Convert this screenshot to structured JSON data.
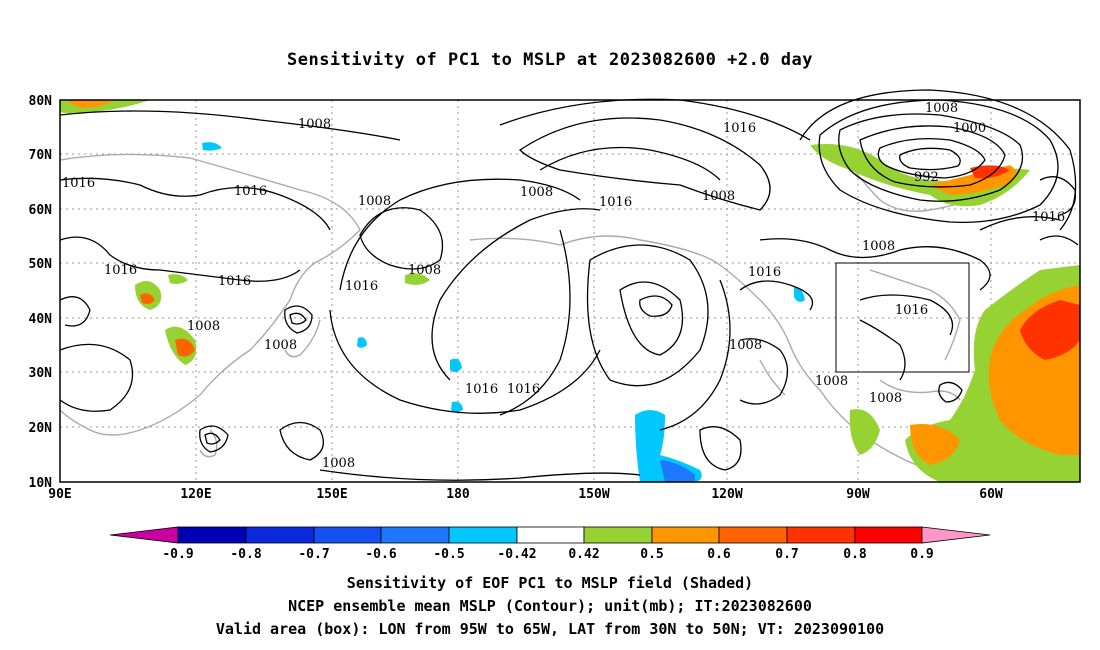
{
  "title": "Sensitivity of PC1 to MSLP at 2023082600 +2.0 day",
  "axes": {
    "lat_labels": [
      "80N",
      "70N",
      "60N",
      "50N",
      "40N",
      "30N",
      "20N",
      "10N"
    ],
    "lon_labels": [
      "90E",
      "120E",
      "150E",
      "180",
      "150W",
      "120W",
      "90W",
      "60W"
    ]
  },
  "contour_labels": [
    "1008",
    "1008",
    "1008",
    "1008",
    "1000",
    "992",
    "1016",
    "1016",
    "1016",
    "1016",
    "1016",
    "1016",
    "1008",
    "1016",
    "1008",
    "1016",
    "1016",
    "1008",
    "1016",
    "1016",
    "1016",
    "1008",
    "1008",
    "1008",
    "1008",
    "1008",
    "1008"
  ],
  "valid_area_box": {
    "lon_from": "95W",
    "lon_to": "65W",
    "lat_from": "30N",
    "lat_to": "50N"
  },
  "colorbar": {
    "tick_labels": [
      "-0.9",
      "-0.8",
      "-0.7",
      "-0.6",
      "-0.5",
      "-0.42",
      "0.42",
      "0.5",
      "0.6",
      "0.7",
      "0.8",
      "0.9"
    ],
    "colors": [
      "#c800a0",
      "#0000b4",
      "#0a28dc",
      "#1450f0",
      "#1e78ff",
      "#00c8ff",
      "#ffffff",
      "#96d232",
      "#ff9600",
      "#ff6400",
      "#ff3200",
      "#ff0000",
      "#ff96c8"
    ]
  },
  "caption": {
    "line1": "Sensitivity of EOF PC1 to MSLP field (Shaded)",
    "line2": "NCEP ensemble mean MSLP (Contour); unit(mb); IT:2023082600",
    "line3": "Valid area (box): LON from 95W to 65W, LAT from 30N to 50N; VT: 2023090100"
  }
}
